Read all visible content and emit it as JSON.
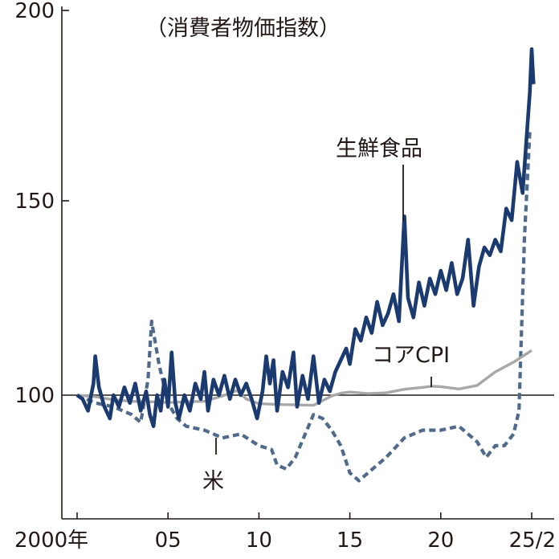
{
  "chart_data": {
    "type": "line",
    "title": "（消費者物価指数）",
    "xlabel": "",
    "ylabel": "",
    "xlim": [
      2000,
      2025.1
    ],
    "ylim": [
      68,
      200
    ],
    "x_tick_labels": [
      {
        "x": 2000,
        "label": "2000年"
      },
      {
        "x": 2005,
        "label": "05"
      },
      {
        "x": 2010,
        "label": "10"
      },
      {
        "x": 2015,
        "label": "15"
      },
      {
        "x": 2020,
        "label": "20"
      },
      {
        "x": 2025,
        "label": "25/2"
      }
    ],
    "y_ticks": [
      100,
      150,
      200
    ],
    "y_tick_labels": [
      "100",
      "150",
      "200"
    ],
    "reference_line": 100,
    "grid": false,
    "series": [
      {
        "name": "生鮮食品",
        "color": "#1b3a6f",
        "style": "solid-thick",
        "points": [
          [
            2000.0,
            100
          ],
          [
            2000.3,
            99
          ],
          [
            2000.6,
            96
          ],
          [
            2000.9,
            103
          ],
          [
            2001.0,
            110
          ],
          [
            2001.2,
            102
          ],
          [
            2001.5,
            97
          ],
          [
            2001.8,
            94
          ],
          [
            2002.0,
            100
          ],
          [
            2002.3,
            97
          ],
          [
            2002.6,
            102
          ],
          [
            2002.9,
            98
          ],
          [
            2003.2,
            103
          ],
          [
            2003.5,
            96
          ],
          [
            2003.8,
            101
          ],
          [
            2004.0,
            95
          ],
          [
            2004.2,
            92
          ],
          [
            2004.4,
            100
          ],
          [
            2004.6,
            96
          ],
          [
            2004.8,
            104
          ],
          [
            2005.0,
            97
          ],
          [
            2005.2,
            111
          ],
          [
            2005.4,
            98
          ],
          [
            2005.6,
            94
          ],
          [
            2005.9,
            100
          ],
          [
            2006.2,
            96
          ],
          [
            2006.5,
            103
          ],
          [
            2006.8,
            99
          ],
          [
            2007.0,
            106
          ],
          [
            2007.2,
            96
          ],
          [
            2007.5,
            104
          ],
          [
            2007.8,
            100
          ],
          [
            2008.1,
            105
          ],
          [
            2008.4,
            99
          ],
          [
            2008.7,
            104
          ],
          [
            2009.0,
            100
          ],
          [
            2009.3,
            103
          ],
          [
            2009.6,
            99
          ],
          [
            2009.9,
            94
          ],
          [
            2010.2,
            101
          ],
          [
            2010.4,
            110
          ],
          [
            2010.6,
            103
          ],
          [
            2010.8,
            109
          ],
          [
            2011.0,
            96
          ],
          [
            2011.3,
            106
          ],
          [
            2011.6,
            102
          ],
          [
            2011.9,
            111
          ],
          [
            2012.1,
            97
          ],
          [
            2012.4,
            105
          ],
          [
            2012.7,
            99
          ],
          [
            2013.0,
            110
          ],
          [
            2013.3,
            98
          ],
          [
            2013.6,
            104
          ],
          [
            2013.9,
            101
          ],
          [
            2014.2,
            106
          ],
          [
            2014.5,
            109
          ],
          [
            2014.8,
            112
          ],
          [
            2015.0,
            108
          ],
          [
            2015.3,
            117
          ],
          [
            2015.6,
            114
          ],
          [
            2015.9,
            120
          ],
          [
            2016.2,
            116
          ],
          [
            2016.5,
            124
          ],
          [
            2016.8,
            118
          ],
          [
            2017.1,
            121
          ],
          [
            2017.4,
            126
          ],
          [
            2017.7,
            119
          ],
          [
            2018.0,
            146
          ],
          [
            2018.2,
            125
          ],
          [
            2018.5,
            120
          ],
          [
            2018.8,
            129
          ],
          [
            2019.1,
            123
          ],
          [
            2019.4,
            130
          ],
          [
            2019.7,
            126
          ],
          [
            2020.0,
            132
          ],
          [
            2020.3,
            127
          ],
          [
            2020.6,
            134
          ],
          [
            2020.9,
            126
          ],
          [
            2021.2,
            130
          ],
          [
            2021.5,
            140
          ],
          [
            2021.8,
            123
          ],
          [
            2022.1,
            133
          ],
          [
            2022.4,
            138
          ],
          [
            2022.7,
            136
          ],
          [
            2023.0,
            140
          ],
          [
            2023.3,
            137
          ],
          [
            2023.6,
            148
          ],
          [
            2023.9,
            145
          ],
          [
            2024.2,
            160
          ],
          [
            2024.5,
            152
          ],
          [
            2024.7,
            165
          ],
          [
            2024.9,
            178
          ],
          [
            2025.0,
            189
          ],
          [
            2025.1,
            180
          ]
        ]
      },
      {
        "name": "コアCPI",
        "color": "#a8a8a8",
        "style": "solid-thin",
        "points": [
          [
            2000.0,
            100
          ],
          [
            2001.0,
            99.6
          ],
          [
            2002.0,
            98.8
          ],
          [
            2003.0,
            98.4
          ],
          [
            2004.0,
            98.3
          ],
          [
            2005.0,
            98.1
          ],
          [
            2006.0,
            98.3
          ],
          [
            2007.0,
            98.4
          ],
          [
            2008.0,
            99.8
          ],
          [
            2008.8,
            101.2
          ],
          [
            2009.3,
            99.0
          ],
          [
            2010.0,
            97.8
          ],
          [
            2011.0,
            97.6
          ],
          [
            2012.0,
            97.5
          ],
          [
            2013.0,
            97.4
          ],
          [
            2014.0,
            99.8
          ],
          [
            2014.5,
            100.5
          ],
          [
            2015.0,
            100.8
          ],
          [
            2016.0,
            100.4
          ],
          [
            2017.0,
            100.6
          ],
          [
            2018.0,
            101.5
          ],
          [
            2019.0,
            102.0
          ],
          [
            2019.5,
            102.3
          ],
          [
            2020.0,
            102.2
          ],
          [
            2021.0,
            101.6
          ],
          [
            2022.0,
            102.5
          ],
          [
            2023.0,
            106.0
          ],
          [
            2024.0,
            108.5
          ],
          [
            2025.0,
            111.5
          ]
        ]
      },
      {
        "name": "米",
        "color": "#506a8c",
        "style": "dashed",
        "points": [
          [
            2000.0,
            100
          ],
          [
            2001.0,
            98
          ],
          [
            2002.0,
            97
          ],
          [
            2003.0,
            95
          ],
          [
            2003.5,
            93
          ],
          [
            2003.9,
            104
          ],
          [
            2004.1,
            119
          ],
          [
            2004.5,
            108
          ],
          [
            2005.0,
            98
          ],
          [
            2005.5,
            94
          ],
          [
            2006.0,
            92
          ],
          [
            2007.0,
            91
          ],
          [
            2008.0,
            89
          ],
          [
            2009.0,
            90
          ],
          [
            2010.0,
            87
          ],
          [
            2010.7,
            86
          ],
          [
            2011.0,
            82
          ],
          [
            2011.5,
            81
          ],
          [
            2012.0,
            84
          ],
          [
            2013.0,
            95
          ],
          [
            2013.5,
            94
          ],
          [
            2014.0,
            91
          ],
          [
            2014.5,
            87
          ],
          [
            2015.0,
            80
          ],
          [
            2015.5,
            78
          ],
          [
            2016.0,
            80
          ],
          [
            2017.0,
            84
          ],
          [
            2018.0,
            89
          ],
          [
            2019.0,
            91
          ],
          [
            2020.0,
            91
          ],
          [
            2021.0,
            92
          ],
          [
            2022.0,
            88
          ],
          [
            2022.5,
            84
          ],
          [
            2023.0,
            87
          ],
          [
            2023.5,
            87
          ],
          [
            2024.0,
            90
          ],
          [
            2024.3,
            96
          ],
          [
            2024.6,
            140
          ],
          [
            2024.9,
            168
          ],
          [
            2025.0,
            168
          ]
        ]
      }
    ],
    "labels": {
      "fresh_food": "生鮮食品",
      "core_cpi": "コアCPI",
      "rice": "米"
    }
  }
}
